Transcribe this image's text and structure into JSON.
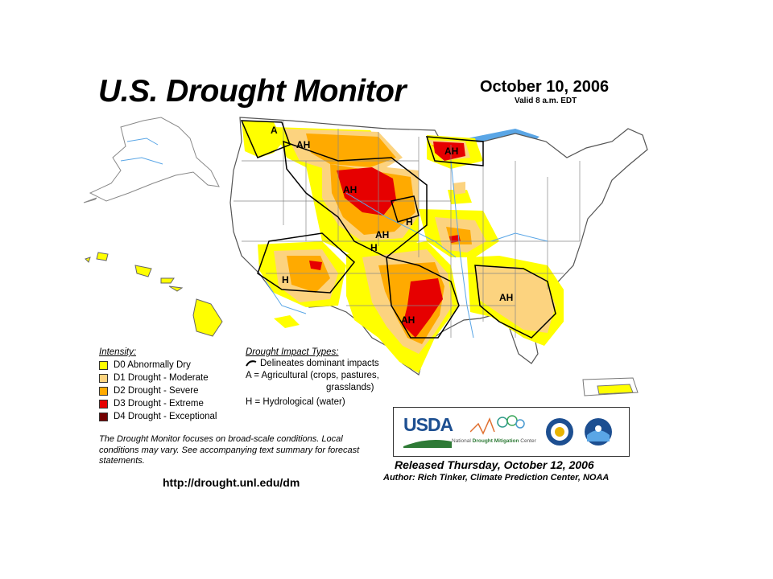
{
  "header": {
    "title": "U.S. Drought Monitor",
    "date": "October 10, 2006",
    "valid": "Valid 8 a.m. EDT"
  },
  "legend": {
    "intensity_title": "Intensity:",
    "intensity": [
      {
        "label": "D0 Abnormally Dry",
        "color": "#ffff00"
      },
      {
        "label": "D1 Drought - Moderate",
        "color": "#fcd37f"
      },
      {
        "label": "D2 Drought - Severe",
        "color": "#ffaa00"
      },
      {
        "label": "D3 Drought - Extreme",
        "color": "#e60000"
      },
      {
        "label": "D4 Drought - Exceptional",
        "color": "#730000"
      }
    ],
    "impact_title": "Drought Impact Types:",
    "impact_lines": [
      "Delineates dominant impacts",
      "A = Agricultural (crops, pastures,",
      "grasslands)",
      "H = Hydrological (water)"
    ]
  },
  "map_labels": [
    "A",
    "AH",
    "AH",
    "AH",
    "H",
    "AH",
    "H",
    "H",
    "AH",
    "AH"
  ],
  "note": "The Drought Monitor focuses on broad-scale conditions. Local conditions may vary. See accompanying text summary for forecast statements.",
  "url": "http://drought.unl.edu/dm",
  "logos": {
    "usda": "USDA",
    "ndmc_prefix": "National",
    "ndmc_bold": "Drought Mitigation",
    "ndmc_suffix": "Center"
  },
  "footer": {
    "released": "Released Thursday, October 12, 2006",
    "author": "Author: Rich Tinker, Climate Prediction Center, NOAA"
  },
  "colors": {
    "water": "#5aa6e6",
    "land": "#ffffff",
    "d0": "#ffff00",
    "d1": "#fcd37f",
    "d2": "#ffaa00",
    "d3": "#e60000"
  }
}
